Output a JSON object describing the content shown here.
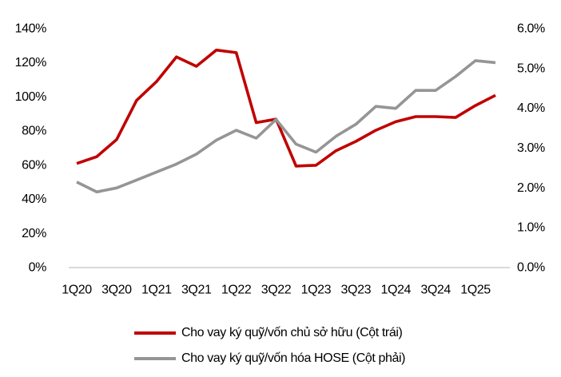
{
  "chart_data": {
    "type": "line",
    "title": "",
    "grid": false,
    "legend_position": "bottom",
    "x_categories": [
      "1Q20",
      "2Q20",
      "3Q20",
      "4Q20",
      "1Q21",
      "2Q21",
      "3Q21",
      "4Q21",
      "1Q22",
      "2Q22",
      "3Q22",
      "4Q22",
      "1Q23",
      "2Q23",
      "3Q23",
      "4Q23",
      "1Q24",
      "2Q24",
      "3Q24",
      "4Q24",
      "1Q25",
      "2Q25"
    ],
    "x_tick_labels": [
      "1Q20",
      "3Q20",
      "1Q21",
      "3Q21",
      "1Q22",
      "3Q22",
      "1Q23",
      "3Q23",
      "1Q24",
      "3Q24",
      "1Q25"
    ],
    "left_axis": {
      "min": 0,
      "max": 140,
      "tick_labels_top_to_bottom": [
        "140%",
        "120%",
        "100%",
        "80%",
        "60%",
        "40%",
        "20%",
        "0%"
      ]
    },
    "right_axis": {
      "min": 0,
      "max": 6,
      "tick_labels_top_to_bottom": [
        "6.0%",
        "5.0%",
        "4.0%",
        "3.0%",
        "2.0%",
        "1.0%",
        "0.0%"
      ]
    },
    "series": [
      {
        "name": "Cho vay ký quỹ/vốn chủ sở hữu (Cột trái)",
        "axis": "left",
        "color": "#C00000",
        "values": [
          61,
          65,
          75,
          98,
          109,
          123.5,
          118,
          127.5,
          126,
          85,
          87,
          59.5,
          60,
          68.5,
          74,
          80.5,
          85.5,
          88.5,
          88.5,
          88,
          95,
          101
        ]
      },
      {
        "name": "Cho vay ký quỹ/vốn hóa HOSE (Cột phải)",
        "axis": "right",
        "color": "#959595",
        "values": [
          2.15,
          1.9,
          2.0,
          2.2,
          2.4,
          2.6,
          2.85,
          3.2,
          3.45,
          3.25,
          3.72,
          3.1,
          2.9,
          3.3,
          3.6,
          4.05,
          4.0,
          4.45,
          4.45,
          4.8,
          5.2,
          5.15
        ]
      }
    ]
  },
  "colors": {
    "baseline": "#D9D9D9",
    "text": "#000000",
    "background": "#FFFFFF"
  }
}
